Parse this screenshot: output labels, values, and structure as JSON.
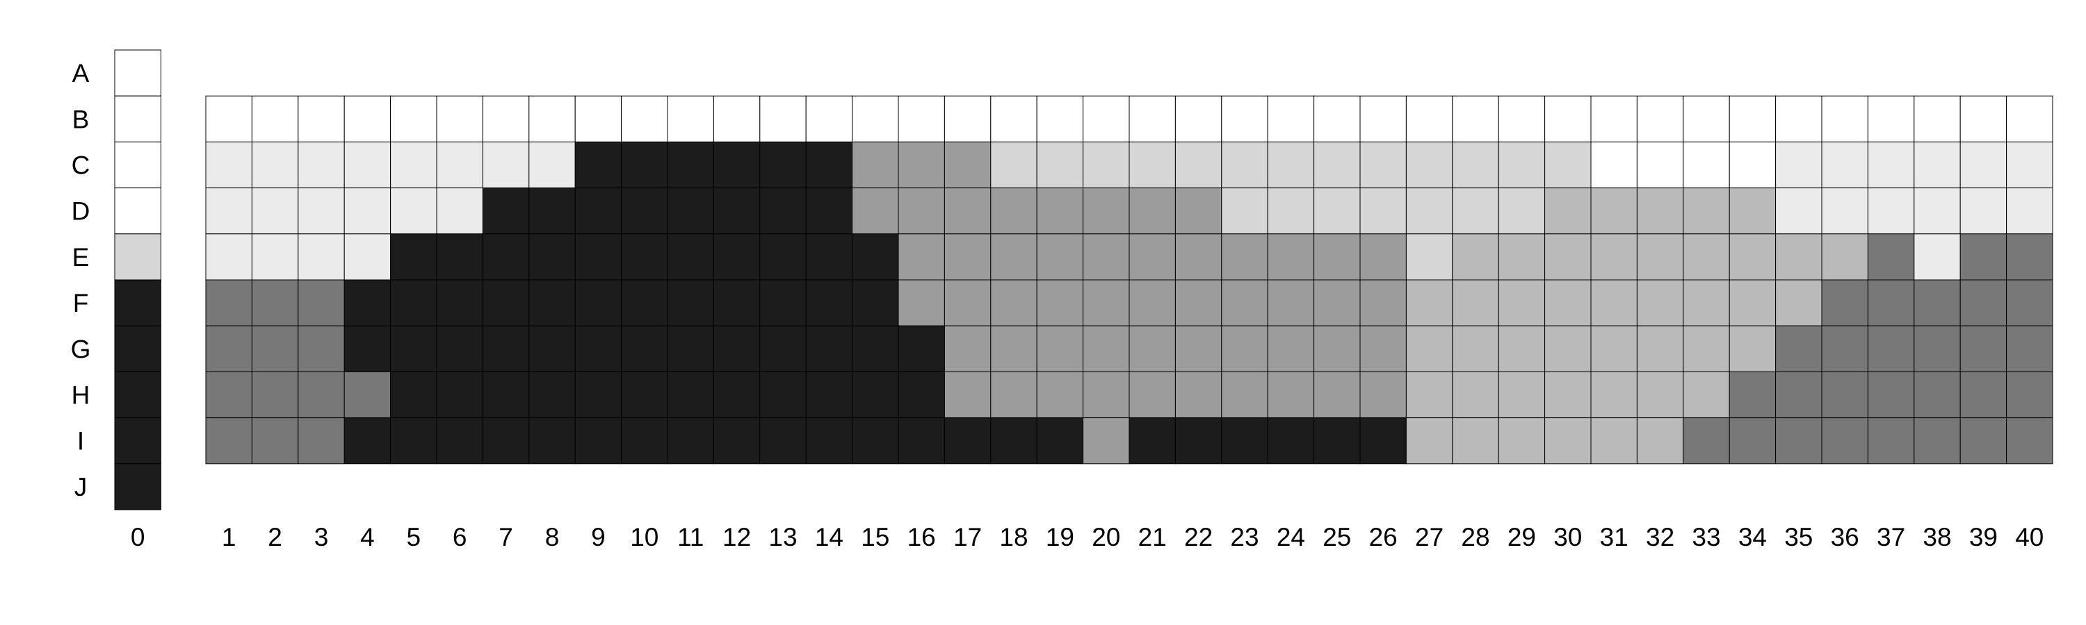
{
  "chart_data": {
    "type": "heatmap",
    "title": "",
    "xlabel": "",
    "ylabel": "",
    "rows": [
      "A",
      "B",
      "C",
      "D",
      "E",
      "F",
      "G",
      "H",
      "I",
      "J"
    ],
    "columns": [
      "0",
      "1",
      "2",
      "3",
      "4",
      "5",
      "6",
      "7",
      "8",
      "9",
      "10",
      "11",
      "12",
      "13",
      "14",
      "15",
      "16",
      "17",
      "18",
      "19",
      "20",
      "21",
      "22",
      "23",
      "24",
      "25",
      "26",
      "27",
      "28",
      "29",
      "30",
      "31",
      "32",
      "33",
      "34",
      "35",
      "36",
      "37",
      "38",
      "39",
      "40"
    ],
    "palette": [
      "#ffffff",
      "#ebebeb",
      "#d6d6d6",
      "#bababa",
      "#9c9c9c",
      "#787878",
      "#1c1c1c"
    ],
    "legend_column": {
      "column": "0",
      "rows": [
        "A",
        "B",
        "C",
        "D",
        "E",
        "F",
        "G",
        "H",
        "I",
        "J"
      ],
      "values": [
        0,
        0,
        0,
        0,
        2,
        6,
        6,
        6,
        6,
        6
      ]
    },
    "grid": {
      "columns": [
        "1",
        "2",
        "3",
        "4",
        "5",
        "6",
        "7",
        "8",
        "9",
        "10",
        "11",
        "12",
        "13",
        "14",
        "15",
        "16",
        "17",
        "18",
        "19",
        "20",
        "21",
        "22",
        "23",
        "24",
        "25",
        "26",
        "27",
        "28",
        "29",
        "30",
        "31",
        "32",
        "33",
        "34",
        "35",
        "36",
        "37",
        "38",
        "39",
        "40"
      ],
      "rows": [
        "B",
        "C",
        "D",
        "E",
        "F",
        "G",
        "H",
        "I"
      ],
      "values": [
        [
          0,
          0,
          0,
          0,
          0,
          0,
          0,
          0,
          0,
          0,
          0,
          0,
          0,
          0,
          0,
          0,
          0,
          0,
          0,
          0,
          0,
          0,
          0,
          0,
          0,
          0,
          0,
          0,
          0,
          0,
          0,
          0,
          0,
          0,
          0,
          0,
          0,
          0,
          0,
          0
        ],
        [
          1,
          1,
          1,
          1,
          1,
          1,
          1,
          1,
          6,
          6,
          6,
          6,
          6,
          6,
          4,
          4,
          4,
          2,
          2,
          2,
          2,
          2,
          2,
          2,
          2,
          2,
          2,
          2,
          2,
          2,
          0,
          0,
          0,
          0,
          1,
          1,
          1,
          1,
          1,
          1
        ],
        [
          1,
          1,
          1,
          1,
          1,
          1,
          6,
          6,
          6,
          6,
          6,
          6,
          6,
          6,
          4,
          4,
          4,
          4,
          4,
          4,
          4,
          4,
          2,
          2,
          2,
          2,
          2,
          2,
          2,
          3,
          3,
          3,
          3,
          3,
          1,
          1,
          1,
          1,
          1,
          1
        ],
        [
          1,
          1,
          1,
          1,
          6,
          6,
          6,
          6,
          6,
          6,
          6,
          6,
          6,
          6,
          6,
          4,
          4,
          4,
          4,
          4,
          4,
          4,
          4,
          4,
          4,
          4,
          2,
          3,
          3,
          3,
          3,
          3,
          3,
          3,
          3,
          3,
          5,
          1,
          5,
          5
        ],
        [
          5,
          5,
          5,
          6,
          6,
          6,
          6,
          6,
          6,
          6,
          6,
          6,
          6,
          6,
          6,
          4,
          4,
          4,
          4,
          4,
          4,
          4,
          4,
          4,
          4,
          4,
          3,
          3,
          3,
          3,
          3,
          3,
          3,
          3,
          3,
          5,
          5,
          5,
          5,
          5
        ],
        [
          5,
          5,
          5,
          6,
          6,
          6,
          6,
          6,
          6,
          6,
          6,
          6,
          6,
          6,
          6,
          6,
          4,
          4,
          4,
          4,
          4,
          4,
          4,
          4,
          4,
          4,
          3,
          3,
          3,
          3,
          3,
          3,
          3,
          3,
          5,
          5,
          5,
          5,
          5,
          5
        ],
        [
          5,
          5,
          5,
          5,
          6,
          6,
          6,
          6,
          6,
          6,
          6,
          6,
          6,
          6,
          6,
          6,
          4,
          4,
          4,
          4,
          4,
          4,
          4,
          4,
          4,
          4,
          3,
          3,
          3,
          3,
          3,
          3,
          3,
          5,
          5,
          5,
          5,
          5,
          5,
          5
        ],
        [
          5,
          5,
          5,
          6,
          6,
          6,
          6,
          6,
          6,
          6,
          6,
          6,
          6,
          6,
          6,
          6,
          6,
          6,
          6,
          4,
          6,
          6,
          6,
          6,
          6,
          6,
          3,
          3,
          3,
          3,
          3,
          3,
          5,
          5,
          5,
          5,
          5,
          5,
          5,
          5
        ]
      ]
    }
  }
}
